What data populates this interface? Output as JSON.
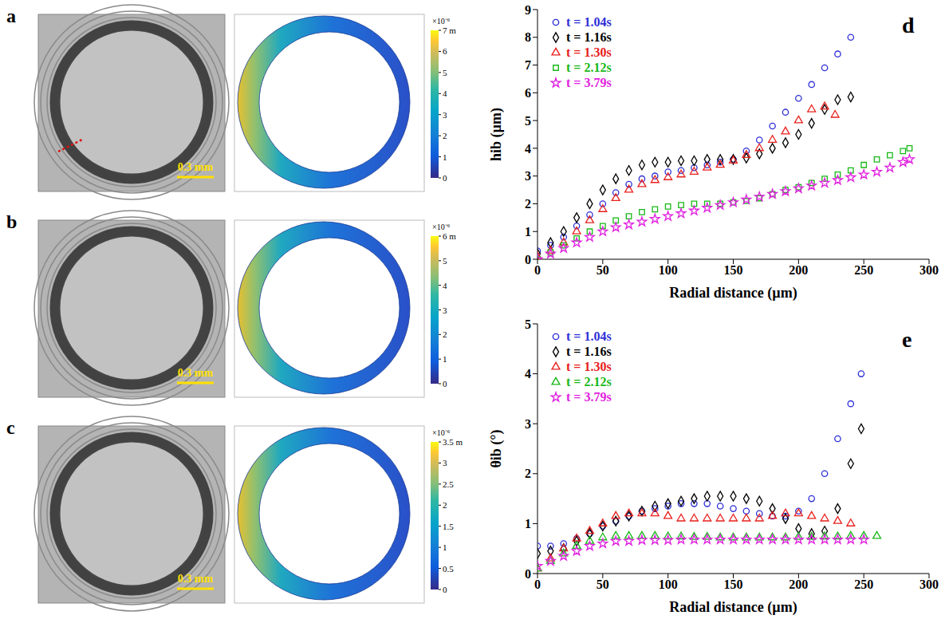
{
  "panels": [
    {
      "letter": "a",
      "scale_bar": "0.3 mm",
      "colorbar": {
        "range": [
          0,
          7
        ],
        "ticks": [
          0,
          1,
          2,
          3,
          4,
          5,
          6,
          7
        ],
        "exponent": "×10⁻⁶",
        "unit": "m"
      }
    },
    {
      "letter": "b",
      "scale_bar": "0.3 mm",
      "colorbar": {
        "range": [
          0,
          6
        ],
        "ticks": [
          0,
          1,
          2,
          3,
          4,
          5,
          6
        ],
        "exponent": "×10⁻⁶",
        "unit": "m"
      }
    },
    {
      "letter": "c",
      "scale_bar": "0.3 mm",
      "colorbar": {
        "range": [
          0,
          3.5
        ],
        "ticks": [
          0,
          0.5,
          1,
          1.5,
          2,
          2.5,
          3,
          3.5
        ],
        "exponent": "×10⁻⁶",
        "unit": "m"
      }
    }
  ],
  "chart_data": [
    {
      "panel": "d",
      "type": "scatter",
      "xlabel": "Radial distance (µm)",
      "ylabel": "hib (µm)",
      "xlim": [
        0,
        300
      ],
      "xticks": [
        0,
        50,
        100,
        150,
        200,
        250,
        300
      ],
      "ylim": [
        0,
        9
      ],
      "yticks": [
        0,
        1,
        2,
        3,
        4,
        5,
        6,
        7,
        8,
        9
      ],
      "grid": false,
      "legend": "upper left",
      "series": [
        {
          "name": "t = 1.04s",
          "color": "#2f2fd6",
          "marker": "circle",
          "x": [
            0,
            10,
            20,
            30,
            40,
            50,
            60,
            70,
            80,
            90,
            100,
            110,
            120,
            130,
            140,
            150,
            160,
            170,
            180,
            190,
            200,
            210,
            220,
            230,
            240
          ],
          "values": [
            0.3,
            0.5,
            0.8,
            1.2,
            1.6,
            2.0,
            2.4,
            2.7,
            2.9,
            3.0,
            3.15,
            3.2,
            3.3,
            3.4,
            3.5,
            3.6,
            3.9,
            4.3,
            4.8,
            5.3,
            5.8,
            6.3,
            6.9,
            7.4,
            8.0
          ]
        },
        {
          "name": "t = 1.16s",
          "color": "#000000",
          "marker": "diamond",
          "x": [
            0,
            10,
            20,
            30,
            40,
            50,
            60,
            70,
            80,
            90,
            100,
            110,
            120,
            130,
            140,
            150,
            160,
            170,
            180,
            190,
            200,
            210,
            220,
            230,
            240
          ],
          "values": [
            0.2,
            0.6,
            1.0,
            1.5,
            2.0,
            2.5,
            2.9,
            3.2,
            3.4,
            3.5,
            3.5,
            3.55,
            3.55,
            3.6,
            3.6,
            3.6,
            3.65,
            3.8,
            4.0,
            4.2,
            4.5,
            4.9,
            5.4,
            5.75,
            5.85
          ]
        },
        {
          "name": "t = 1.30s",
          "color": "#e8201c",
          "marker": "triangle",
          "x": [
            0,
            10,
            20,
            30,
            40,
            50,
            60,
            70,
            80,
            90,
            100,
            110,
            120,
            130,
            140,
            150,
            160,
            170,
            180,
            190,
            200,
            210,
            220,
            228
          ],
          "values": [
            0.1,
            0.3,
            0.6,
            1.0,
            1.4,
            1.8,
            2.2,
            2.5,
            2.7,
            2.85,
            2.95,
            3.05,
            3.15,
            3.3,
            3.4,
            3.55,
            3.75,
            4.0,
            4.3,
            4.6,
            5.0,
            5.4,
            5.5,
            5.2
          ]
        },
        {
          "name": "t = 2.12s",
          "color": "#18b818",
          "marker": "square",
          "x": [
            0,
            10,
            20,
            30,
            40,
            50,
            60,
            70,
            80,
            90,
            100,
            110,
            120,
            130,
            140,
            150,
            160,
            170,
            180,
            190,
            200,
            210,
            220,
            230,
            240,
            250,
            260,
            270,
            280,
            285
          ],
          "values": [
            0,
            0.25,
            0.5,
            0.75,
            1.0,
            1.2,
            1.4,
            1.55,
            1.7,
            1.8,
            1.9,
            1.95,
            2.0,
            2.0,
            2.0,
            2.05,
            2.1,
            2.2,
            2.35,
            2.5,
            2.6,
            2.75,
            2.9,
            3.05,
            3.2,
            3.4,
            3.6,
            3.75,
            3.9,
            4.0
          ]
        },
        {
          "name": "t = 3.79s",
          "color": "#e020e0",
          "marker": "star",
          "x": [
            0,
            10,
            20,
            30,
            40,
            50,
            60,
            70,
            80,
            90,
            100,
            110,
            120,
            130,
            140,
            150,
            160,
            170,
            180,
            190,
            200,
            210,
            220,
            230,
            240,
            250,
            260,
            270,
            280,
            285
          ],
          "values": [
            0,
            0.2,
            0.4,
            0.6,
            0.8,
            1.0,
            1.15,
            1.25,
            1.35,
            1.45,
            1.55,
            1.65,
            1.75,
            1.85,
            1.95,
            2.05,
            2.15,
            2.25,
            2.35,
            2.45,
            2.55,
            2.65,
            2.75,
            2.85,
            2.95,
            3.05,
            3.15,
            3.3,
            3.5,
            3.6
          ]
        }
      ]
    },
    {
      "panel": "e",
      "type": "scatter",
      "xlabel": "Radial distance (µm)",
      "ylabel": "θib (°)",
      "xlim": [
        0,
        300
      ],
      "xticks": [
        0,
        50,
        100,
        150,
        200,
        250,
        300
      ],
      "ylim": [
        0,
        5
      ],
      "yticks": [
        0,
        1,
        2,
        3,
        4,
        5
      ],
      "grid": false,
      "legend": "upper left",
      "series": [
        {
          "name": "t = 1.04s",
          "color": "#2f2fd6",
          "marker": "circle",
          "x": [
            0,
            10,
            20,
            30,
            40,
            50,
            60,
            70,
            80,
            90,
            100,
            110,
            120,
            130,
            140,
            150,
            160,
            170,
            180,
            190,
            200,
            210,
            220,
            230,
            240,
            248
          ],
          "values": [
            0.55,
            0.55,
            0.6,
            0.7,
            0.8,
            0.95,
            1.05,
            1.15,
            1.25,
            1.3,
            1.35,
            1.4,
            1.4,
            1.4,
            1.35,
            1.3,
            1.25,
            1.2,
            1.15,
            1.15,
            1.25,
            1.5,
            2.0,
            2.7,
            3.4,
            4.0
          ]
        },
        {
          "name": "t = 1.16s",
          "color": "#000000",
          "marker": "diamond",
          "x": [
            0,
            10,
            20,
            30,
            40,
            50,
            60,
            70,
            80,
            90,
            100,
            110,
            120,
            130,
            140,
            150,
            160,
            170,
            180,
            190,
            200,
            210,
            220,
            230,
            240,
            248
          ],
          "values": [
            0.4,
            0.45,
            0.5,
            0.65,
            0.8,
            0.95,
            1.05,
            1.15,
            1.25,
            1.35,
            1.4,
            1.45,
            1.5,
            1.55,
            1.55,
            1.55,
            1.5,
            1.45,
            1.3,
            1.1,
            0.9,
            0.8,
            0.85,
            1.3,
            2.2,
            2.9
          ]
        },
        {
          "name": "t = 1.30s",
          "color": "#e8201c",
          "marker": "triangle",
          "x": [
            0,
            10,
            20,
            30,
            40,
            50,
            60,
            70,
            80,
            90,
            100,
            110,
            120,
            130,
            140,
            150,
            160,
            170,
            180,
            190,
            200,
            210,
            220,
            230,
            240
          ],
          "values": [
            0.1,
            0.3,
            0.5,
            0.7,
            0.85,
            1.0,
            1.15,
            1.2,
            1.2,
            1.2,
            1.15,
            1.1,
            1.1,
            1.1,
            1.1,
            1.1,
            1.1,
            1.1,
            1.15,
            1.2,
            1.2,
            1.15,
            1.1,
            1.05,
            1.0
          ]
        },
        {
          "name": "t = 2.12s",
          "color": "#18b818",
          "marker": "triangle",
          "x": [
            0,
            10,
            20,
            30,
            40,
            50,
            60,
            70,
            80,
            90,
            100,
            110,
            120,
            130,
            140,
            150,
            160,
            170,
            180,
            190,
            200,
            210,
            220,
            230,
            240,
            250,
            260
          ],
          "values": [
            0.1,
            0.25,
            0.4,
            0.55,
            0.65,
            0.72,
            0.75,
            0.75,
            0.75,
            0.75,
            0.74,
            0.74,
            0.73,
            0.73,
            0.72,
            0.72,
            0.72,
            0.72,
            0.72,
            0.72,
            0.73,
            0.73,
            0.74,
            0.74,
            0.75,
            0.75,
            0.75
          ]
        },
        {
          "name": "t = 3.79s",
          "color": "#e020e0",
          "marker": "star",
          "x": [
            0,
            10,
            20,
            30,
            40,
            50,
            60,
            70,
            80,
            90,
            100,
            110,
            120,
            130,
            140,
            150,
            160,
            170,
            180,
            190,
            200,
            210,
            220,
            230,
            240,
            250
          ],
          "values": [
            0.15,
            0.25,
            0.35,
            0.45,
            0.55,
            0.6,
            0.65,
            0.65,
            0.67,
            0.67,
            0.67,
            0.68,
            0.68,
            0.68,
            0.68,
            0.68,
            0.68,
            0.68,
            0.68,
            0.68,
            0.68,
            0.68,
            0.68,
            0.68,
            0.68,
            0.68
          ]
        }
      ]
    }
  ]
}
